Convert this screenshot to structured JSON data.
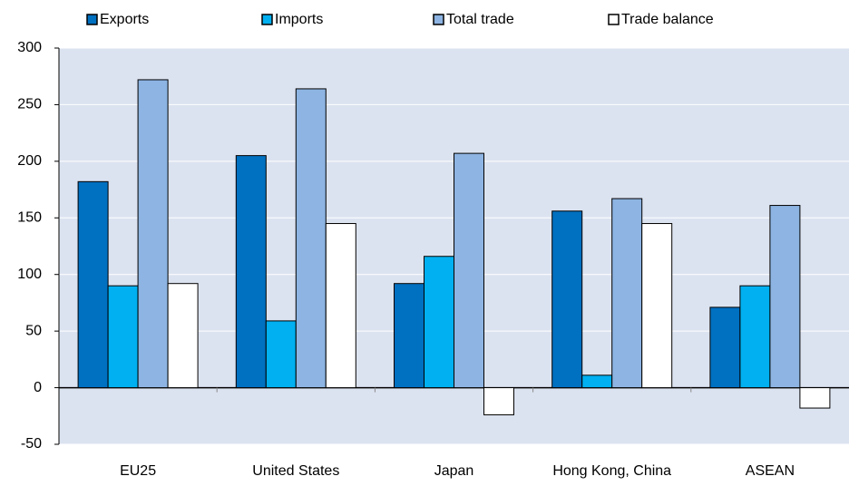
{
  "chart_data": {
    "type": "bar",
    "categories": [
      "EU25",
      "United States",
      "Japan",
      "Hong Kong, China",
      "ASEAN"
    ],
    "series": [
      {
        "name": "Exports",
        "color": "#0070c0",
        "values": [
          182,
          205,
          92,
          156,
          71
        ]
      },
      {
        "name": "Imports",
        "color": "#00b0f0",
        "values": [
          90,
          59,
          116,
          11,
          90
        ]
      },
      {
        "name": "Total trade",
        "color": "#8db4e2",
        "values": [
          272,
          264,
          207,
          167,
          161
        ]
      },
      {
        "name": "Trade balance",
        "color": "#ffffff",
        "values": [
          92,
          145,
          -24,
          145,
          -18
        ]
      }
    ],
    "ylim": [
      -50,
      300
    ],
    "yticks": [
      -50,
      0,
      50,
      100,
      150,
      200,
      250,
      300
    ],
    "grid": true,
    "legend": "top"
  }
}
